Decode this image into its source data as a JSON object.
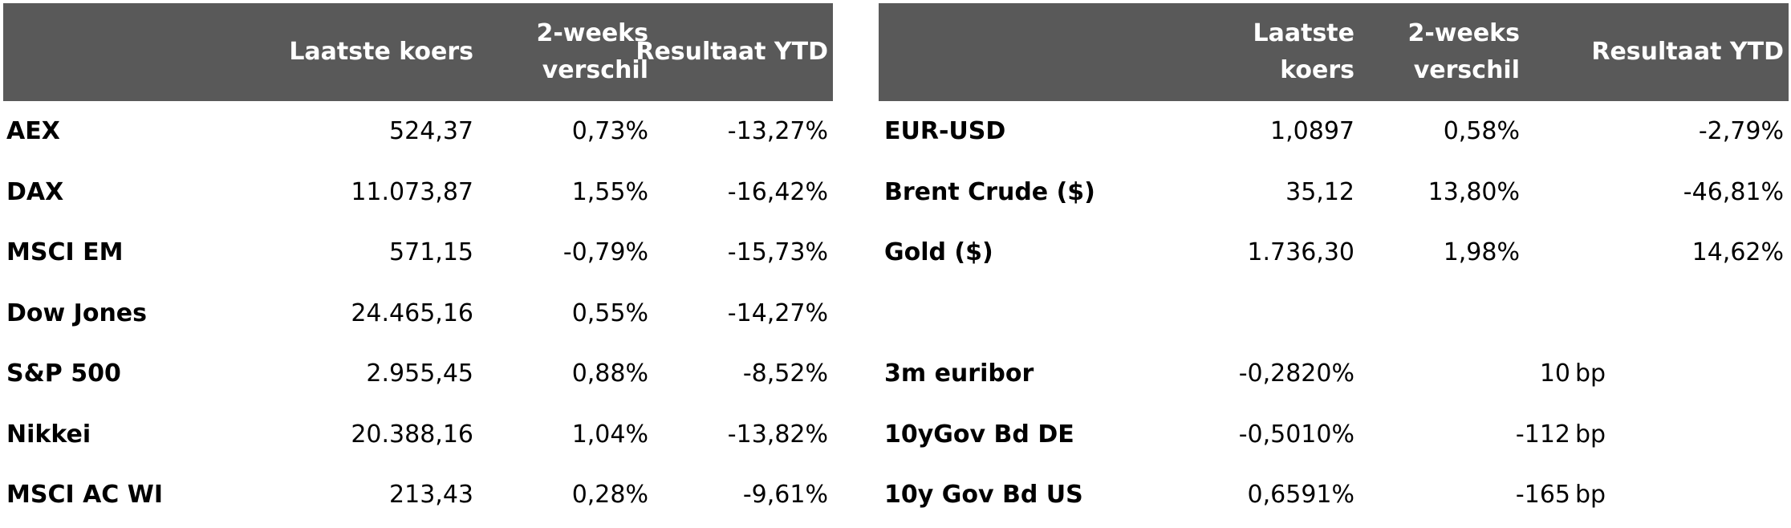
{
  "left_table": {
    "headers": {
      "col1": "",
      "col2": "Laatste koers",
      "col3": "2-weeks\nverschil",
      "col4": "Resultaat YTD"
    },
    "rows": [
      {
        "name": "AEX",
        "last": "524,37",
        "change": "0,73%",
        "ytd": "-13,27%"
      },
      {
        "name": "DAX",
        "last": "11.073,87",
        "change": "1,55%",
        "ytd": "-16,42%"
      },
      {
        "name": "MSCI EM",
        "last": "571,15",
        "change": "-0,79%",
        "ytd": "-15,73%"
      },
      {
        "name": "Dow Jones",
        "last": "24.465,16",
        "change": "0,55%",
        "ytd": "-14,27%"
      },
      {
        "name": "S&P 500",
        "last": "2.955,45",
        "change": "0,88%",
        "ytd": "-8,52%"
      },
      {
        "name": "Nikkei",
        "last": "20.388,16",
        "change": "1,04%",
        "ytd": "-13,82%"
      },
      {
        "name": "MSCI AC WI",
        "last": "213,43",
        "change": "0,28%",
        "ytd": "-9,61%"
      }
    ]
  },
  "right_table": {
    "headers": {
      "col1": "",
      "col2": "Laatste\nkoers",
      "col3": "2-weeks\nverschil",
      "col4": "Resultaat YTD"
    },
    "rows": [
      {
        "name": "EUR-USD",
        "last": "1,0897",
        "change": "0,58%",
        "ytd": "-2,79%",
        "bp_value": "",
        "bp_unit": ""
      },
      {
        "name": "Brent Crude ($)",
        "last": "35,12",
        "change": "13,80%",
        "ytd": "-46,81%",
        "bp_value": "",
        "bp_unit": ""
      },
      {
        "name": "Gold ($)",
        "last": "1.736,30",
        "change": "1,98%",
        "ytd": "14,62%",
        "bp_value": "",
        "bp_unit": ""
      },
      {
        "name": "",
        "last": "",
        "change": "",
        "ytd": "",
        "bp_value": "",
        "bp_unit": ""
      },
      {
        "name": "3m euribor",
        "last": "-0,2820%",
        "change": "",
        "ytd": "",
        "bp_value": "10",
        "bp_unit": "bp"
      },
      {
        "name": "10yGov Bd DE",
        "last": "-0,5010%",
        "change": "",
        "ytd": "",
        "bp_value": "-112",
        "bp_unit": "bp"
      },
      {
        "name": "10y Gov Bd US",
        "last": "0,6591%",
        "change": "",
        "ytd": "",
        "bp_value": "-165",
        "bp_unit": "bp"
      }
    ]
  },
  "colors": {
    "header_bg": "#595959",
    "header_text": "#ffffff",
    "body_text": "#000000"
  }
}
